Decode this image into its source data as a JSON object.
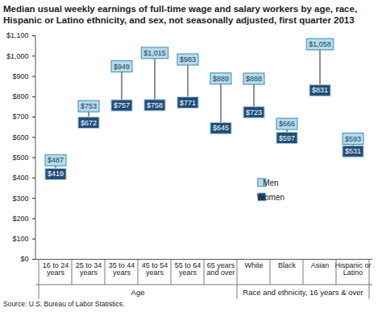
{
  "chart_data": {
    "type": "range_dot",
    "title": "Median usual weekly earnings of full-time wage and salary workers by age, race, Hispanic or Latino ethnicity, and sex, not seasonally adjusted, first quarter 2013",
    "source": "Source: U.S. Bureau of Labor Statistics.",
    "categories": [
      "16 to 24 years",
      "25 to 34 years",
      "35 to 44 years",
      "45 to 54 years",
      "55 to 64 years",
      "65 years and over",
      "White",
      "Black",
      "Asian",
      "Hispanic or Latino"
    ],
    "group": [
      "Age",
      "Age",
      "Age",
      "Age",
      "Age",
      "Age",
      "Race and ethnicity, 16 years & over",
      "Race and ethnicity, 16 years & over",
      "Race and ethnicity, 16 years & over",
      "Race and ethnicity, 16 years & over"
    ],
    "series": [
      {
        "name": "Men",
        "color": "#b3dcec",
        "values": [
          487,
          753,
          949,
          1015,
          983,
          889,
          888,
          666,
          1058,
          593
        ],
        "value_labels": [
          "$487",
          "$753",
          "$949",
          "$1,015",
          "$983",
          "$889",
          "$888",
          "$666",
          "$1,058",
          "$593"
        ]
      },
      {
        "name": "Women",
        "color": "#1f4e79",
        "values": [
          419,
          672,
          757,
          758,
          771,
          645,
          723,
          597,
          831,
          531
        ],
        "value_labels": [
          "$419",
          "$672",
          "$757",
          "$758",
          "$771",
          "$645",
          "$723",
          "$597",
          "$831",
          "$531"
        ]
      }
    ],
    "ylim": [
      0,
      1100
    ],
    "yticks": [
      {
        "value": 0,
        "label": "$0"
      },
      {
        "value": 100,
        "label": "$100"
      },
      {
        "value": 200,
        "label": "$200"
      },
      {
        "value": 300,
        "label": "$300"
      },
      {
        "value": 400,
        "label": "$400"
      },
      {
        "value": 500,
        "label": "$500"
      },
      {
        "value": 600,
        "label": "$600"
      },
      {
        "value": 700,
        "label": "$700"
      },
      {
        "value": 800,
        "label": "$800"
      },
      {
        "value": 900,
        "label": "$900"
      },
      {
        "value": 1000,
        "label": "$1,000"
      },
      {
        "value": 1100,
        "label": "$1,100"
      }
    ],
    "grid": false,
    "legend": "right",
    "data_labels": true
  }
}
